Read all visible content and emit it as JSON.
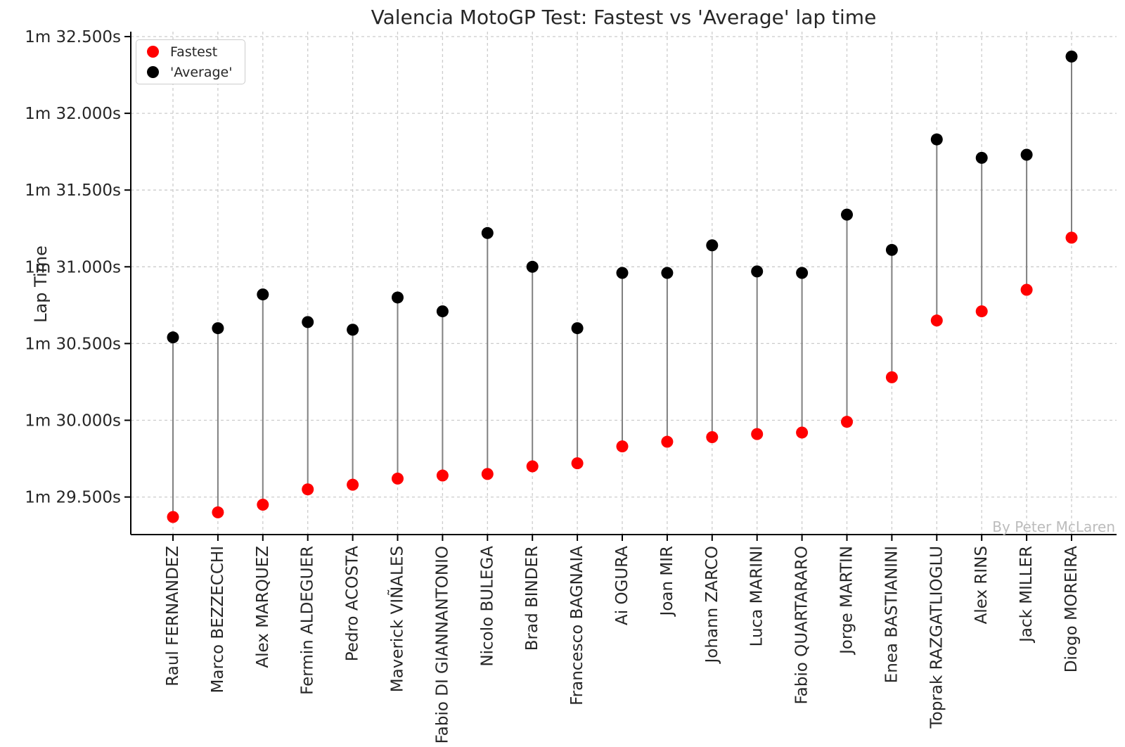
{
  "title": "Valencia MotoGP Test: Fastest vs 'Average' lap time",
  "ylabel": "Lap Time",
  "watermark": "By Peter McLaren",
  "legend": {
    "fastest_label": "Fastest",
    "average_label": "'Average'"
  },
  "colors": {
    "fastest": "#ff0000",
    "average": "#000000",
    "stem": "#808080",
    "grid": "#cccccc",
    "spine": "#000000",
    "text": "#262626",
    "watermark": "#bcbcbc"
  },
  "chart_data": {
    "type": "scatter",
    "subtype": "dumbbell-lollipop",
    "title": "Valencia MotoGP Test: Fastest vs 'Average' lap time",
    "xlabel": "",
    "ylabel": "Lap Time",
    "grid": true,
    "legend_position": "upper left",
    "ylim_seconds": [
      29.25,
      32.53
    ],
    "yticks": [
      {
        "value": 32.5,
        "label": "1m 32.500s"
      },
      {
        "value": 32.0,
        "label": "1m 32.000s"
      },
      {
        "value": 31.5,
        "label": "1m 31.500s"
      },
      {
        "value": 31.0,
        "label": "1m 31.000s"
      },
      {
        "value": 30.5,
        "label": "1m 30.500s"
      },
      {
        "value": 30.0,
        "label": "1m 30.000s"
      },
      {
        "value": 29.5,
        "label": "1m 29.500s"
      }
    ],
    "categories": [
      "Raul FERNANDEZ",
      "Marco BEZZECCHI",
      "Alex MARQUEZ",
      "Fermin ALDEGUER",
      "Pedro ACOSTA",
      "Maverick VIÑALES",
      "Fabio DI GIANNANTONIO",
      "Nicolo BULEGA",
      "Brad BINDER",
      "Francesco BAGNAIA",
      "Ai OGURA",
      "Joan MIR",
      "Johann ZARCO",
      "Luca MARINI",
      "Fabio QUARTARARO",
      "Jorge MARTIN",
      "Enea BASTIANINI",
      "Toprak RAZGATLIOGLU",
      "Alex RINS",
      "Jack MILLER",
      "Diogo MOREIRA"
    ],
    "series": [
      {
        "name": "Fastest",
        "color": "#ff0000",
        "values_seconds": [
          29.37,
          29.4,
          29.45,
          29.55,
          29.58,
          29.62,
          29.64,
          29.65,
          29.7,
          29.72,
          29.83,
          29.86,
          29.89,
          29.91,
          29.92,
          29.99,
          30.28,
          30.65,
          30.71,
          30.85,
          31.19
        ]
      },
      {
        "name": "'Average'",
        "color": "#000000",
        "values_seconds": [
          30.54,
          30.6,
          30.82,
          30.64,
          30.59,
          30.8,
          30.71,
          31.22,
          31.0,
          30.6,
          30.96,
          30.96,
          31.14,
          30.97,
          30.96,
          31.34,
          31.11,
          31.83,
          31.71,
          31.73,
          32.37
        ]
      }
    ]
  }
}
